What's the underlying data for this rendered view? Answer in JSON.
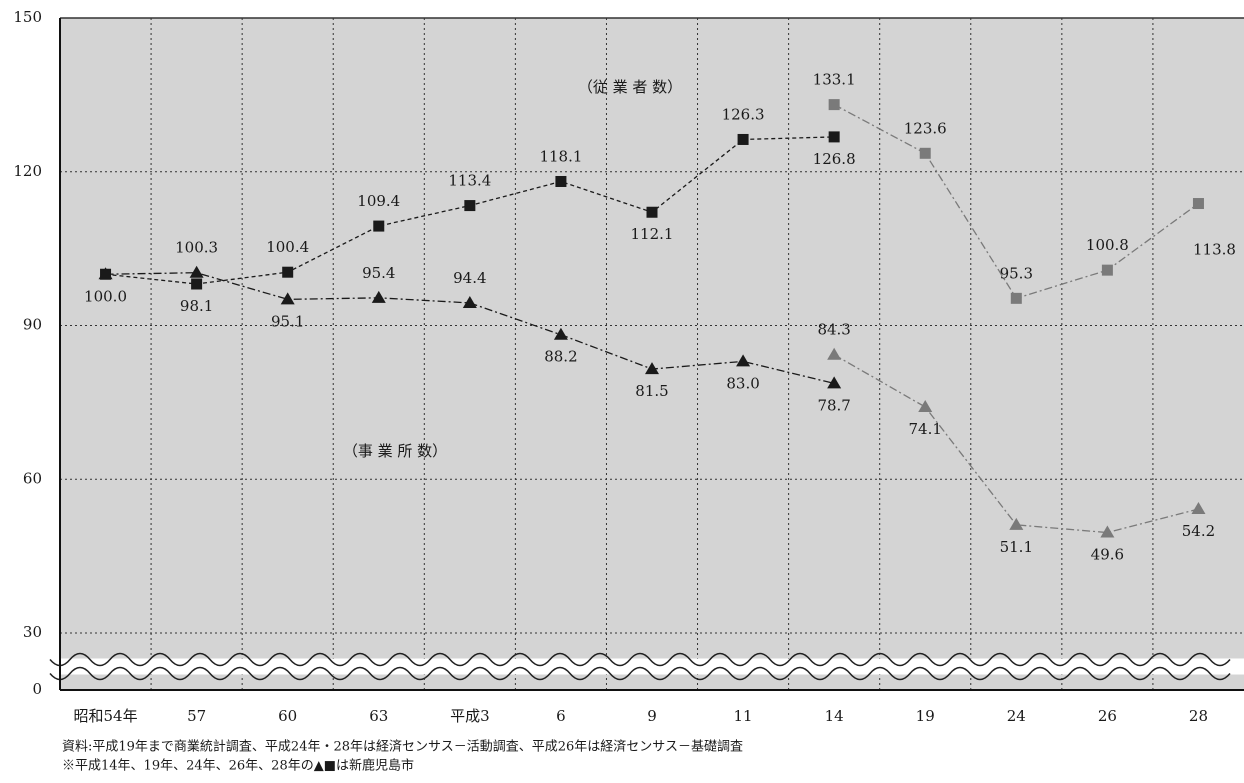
{
  "chart_data": {
    "type": "line",
    "categories": [
      "昭和54年",
      "57",
      "60",
      "63",
      "平成3",
      "6",
      "9",
      "11",
      "14",
      "19",
      "24",
      "26",
      "28"
    ],
    "series": [
      {
        "name": "（従 業 者 数）",
        "color": "#1a1a1a",
        "marker": "square",
        "values": [
          100.0,
          98.1,
          100.4,
          109.4,
          113.4,
          118.1,
          112.1,
          126.3,
          126.8,
          null,
          null,
          null,
          null
        ],
        "value_labels": [
          "100.0",
          "98.1",
          "100.4",
          "109.4",
          "113.4",
          "118.1",
          "112.1",
          "126.3",
          "126.8",
          null,
          null,
          null,
          null
        ]
      },
      {
        "name": "（従 業 者 数）",
        "color": "#7a7a7a",
        "marker": "square",
        "values": [
          null,
          null,
          null,
          null,
          null,
          null,
          null,
          null,
          133.1,
          123.6,
          95.3,
          100.8,
          113.8
        ]
      },
      {
        "name": "（事 業 所 数）",
        "color": "#1a1a1a",
        "marker": "triangle",
        "values": [
          100.0,
          100.3,
          95.1,
          95.4,
          94.4,
          88.2,
          81.5,
          83.0,
          78.7,
          null,
          null,
          null,
          null
        ],
        "value_labels": [
          null,
          "100.3",
          "95.1",
          "95.4",
          "94.4",
          "88.2",
          "81.5",
          "83.0",
          "78.7",
          null,
          null,
          null,
          null
        ]
      },
      {
        "name": "（事 業 所 数）",
        "color": "#7a7a7a",
        "marker": "triangle",
        "values": [
          null,
          null,
          null,
          null,
          null,
          null,
          null,
          null,
          84.3,
          74.1,
          51.1,
          49.6,
          54.2
        ]
      }
    ],
    "ylim": [
      0,
      150
    ],
    "yticks": [
      0,
      30,
      60,
      90,
      120,
      150
    ],
    "axis_break": [
      0,
      30
    ],
    "grid": true,
    "notes": [
      "資料:平成19年まで商業統計調査、平成24年・28年は経済センサス－活動調査、平成26年は経済センサス－基礎調査",
      "※平成14年、19年、24年、26年、28年の▲■は新鹿児島市"
    ]
  }
}
